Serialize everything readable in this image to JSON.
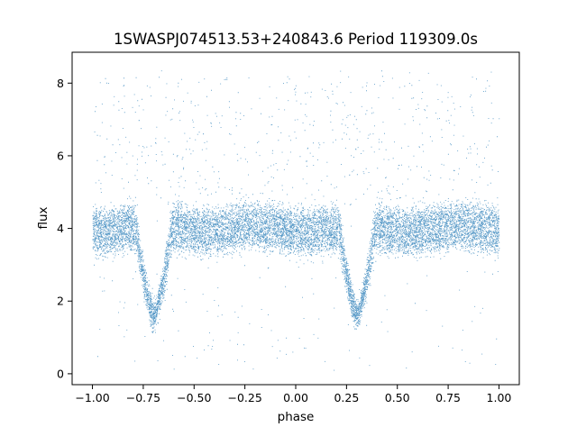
{
  "chart_data": {
    "type": "scatter",
    "title": "1SWASPJ074513.53+240843.6 Period 119309.0s",
    "xlabel": "phase",
    "ylabel": "flux",
    "xlim": [
      -1.1,
      1.1
    ],
    "ylim": [
      -0.3,
      8.85
    ],
    "xticks": [
      -1.0,
      -0.75,
      -0.5,
      -0.25,
      0.0,
      0.25,
      0.5,
      0.75,
      1.0
    ],
    "xtick_labels": [
      "−1.00",
      "−0.75",
      "−0.50",
      "−0.25",
      "0.00",
      "0.25",
      "0.50",
      "0.75",
      "1.00"
    ],
    "yticks": [
      0,
      2,
      4,
      6,
      8
    ],
    "ytick_labels": [
      "0",
      "2",
      "4",
      "6",
      "8"
    ],
    "grid": false,
    "legend": "none",
    "colors": {
      "points": "#1f77b4"
    },
    "series": [
      {
        "phase_range": [
          -1.0,
          1.0
        ],
        "upper_band_flux": 4.25,
        "lower_band_flux": 3.75,
        "scatter_flux_sd": 0.3,
        "eclipse_minima": [
          {
            "phase": -0.7,
            "flux": 1.6
          },
          {
            "phase": 0.3,
            "flux": 1.6
          }
        ],
        "eclipse_halfwidth_phase": 0.09,
        "outlier_flux_range": [
          0.1,
          8.4
        ]
      }
    ]
  }
}
